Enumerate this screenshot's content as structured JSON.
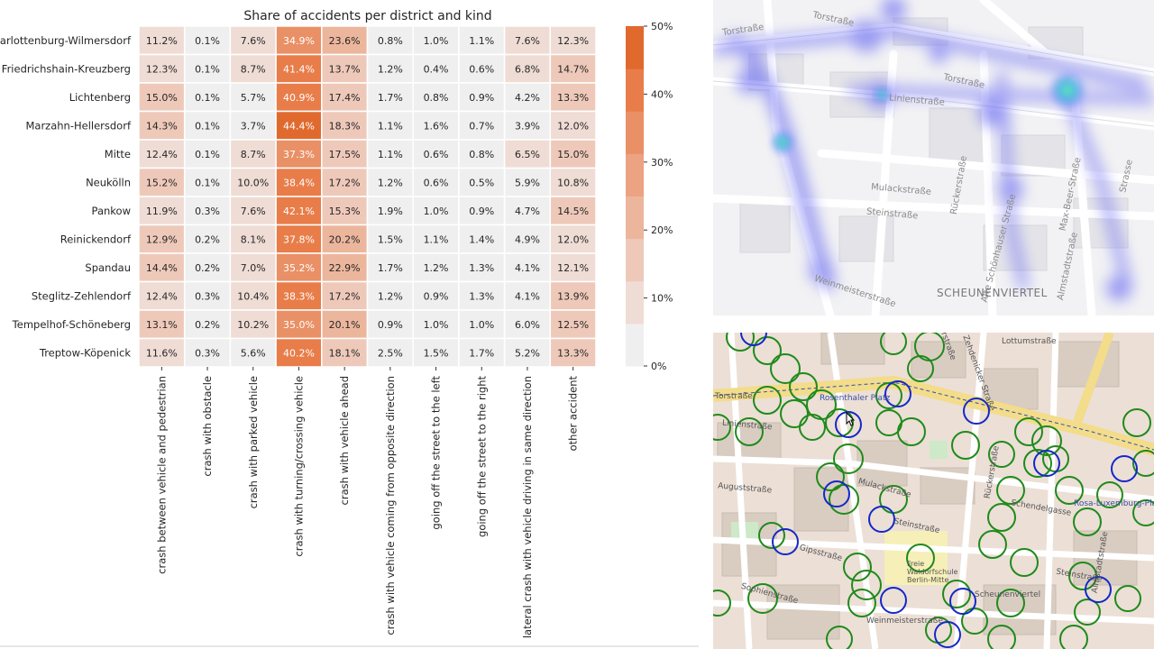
{
  "chart_data": {
    "type": "heatmap",
    "title": "Share of accidents per district and kind",
    "rows": [
      "Charlottenburg-Wilmersdorf",
      "Friedrichshain-Kreuzberg",
      "Lichtenberg",
      "Marzahn-Hellersdorf",
      "Mitte",
      "Neukölln",
      "Pankow",
      "Reinickendorf",
      "Spandau",
      "Steglitz-Zehlendorf",
      "Tempelhof-Schöneberg",
      "Treptow-Köpenick"
    ],
    "columns": [
      "crash between vehicle and pedestrian",
      "crash with obstacle",
      "crash with parked vehicle",
      "crash with turning/crossing vehicle",
      "crash with vehicle ahead",
      "crash with vehicle coming from opposite direction",
      "going off the street to the left",
      "going off the street to the right",
      "lateral crash with vehicle driving in same direction",
      "other accident"
    ],
    "values": [
      [
        11.2,
        0.1,
        7.6,
        34.9,
        23.6,
        0.8,
        1.0,
        1.1,
        7.6,
        12.3
      ],
      [
        12.3,
        0.1,
        8.7,
        41.4,
        13.7,
        1.2,
        0.4,
        0.6,
        6.8,
        14.7
      ],
      [
        15.0,
        0.1,
        5.7,
        40.9,
        17.4,
        1.7,
        0.8,
        0.9,
        4.2,
        13.3
      ],
      [
        14.3,
        0.1,
        3.7,
        44.4,
        18.3,
        1.1,
        1.6,
        0.7,
        3.9,
        12.0
      ],
      [
        12.4,
        0.1,
        8.7,
        37.3,
        17.5,
        1.1,
        0.6,
        0.8,
        6.5,
        15.0
      ],
      [
        15.2,
        0.1,
        10.0,
        38.4,
        17.2,
        1.2,
        0.6,
        0.5,
        5.9,
        10.8
      ],
      [
        11.9,
        0.3,
        7.6,
        42.1,
        15.3,
        1.9,
        1.0,
        0.9,
        4.7,
        14.5
      ],
      [
        12.9,
        0.2,
        8.1,
        37.8,
        20.2,
        1.5,
        1.1,
        1.4,
        4.9,
        12.0
      ],
      [
        14.4,
        0.2,
        7.0,
        35.2,
        22.9,
        1.7,
        1.2,
        1.3,
        4.1,
        12.1
      ],
      [
        12.4,
        0.3,
        10.4,
        38.3,
        17.2,
        1.2,
        0.9,
        1.3,
        4.1,
        13.9
      ],
      [
        13.1,
        0.2,
        10.2,
        35.0,
        20.1,
        0.9,
        1.0,
        1.0,
        6.0,
        12.5
      ],
      [
        11.6,
        0.3,
        5.6,
        40.2,
        18.1,
        2.5,
        1.5,
        1.7,
        5.2,
        13.3
      ]
    ],
    "value_format": "percent_1dp",
    "colorbar": {
      "ticks": [
        "0%",
        "10%",
        "20%",
        "30%",
        "40%",
        "50%"
      ],
      "range": [
        0,
        50
      ],
      "bins": 8,
      "colors": [
        "#f0eff0",
        "#efdcd5",
        "#eec9b9",
        "#ecb69d",
        "#eba382",
        "#e99066",
        "#e87d4a",
        "#e06a2e"
      ]
    }
  },
  "map_top": {
    "labels": [
      "Torstraße",
      "Torstraße",
      "Torstraße",
      "Linienstraße",
      "Mulackstraße",
      "Steinstraße",
      "Rückerstraße",
      "Alte Schönhauser Straße",
      "Max-Beer-Straße",
      "Almstadtstraße",
      "Weinmeisterstraße",
      "SCHEUNENVIERTEL",
      "Strasse"
    ]
  },
  "map_bottom": {
    "labels": [
      "Torstraße",
      "Rosenthaler Platz",
      "Linienstraße",
      "Auguststraße",
      "Mulackstraße",
      "Steinstraße",
      "Gipsstraße",
      "Sophienstraße",
      "Weinmeisterstraße",
      "Lottumstraße",
      "Zehdenicker Straße",
      "Ackerstraße",
      "Rückerstraße",
      "Almstadtstraße",
      "Rosa-Luxemburg-Platz",
      "Freie Waldorfschule Berlin-Mitte",
      "Scheunenviertel",
      "Schendelgasse",
      "Steinstraße"
    ]
  }
}
